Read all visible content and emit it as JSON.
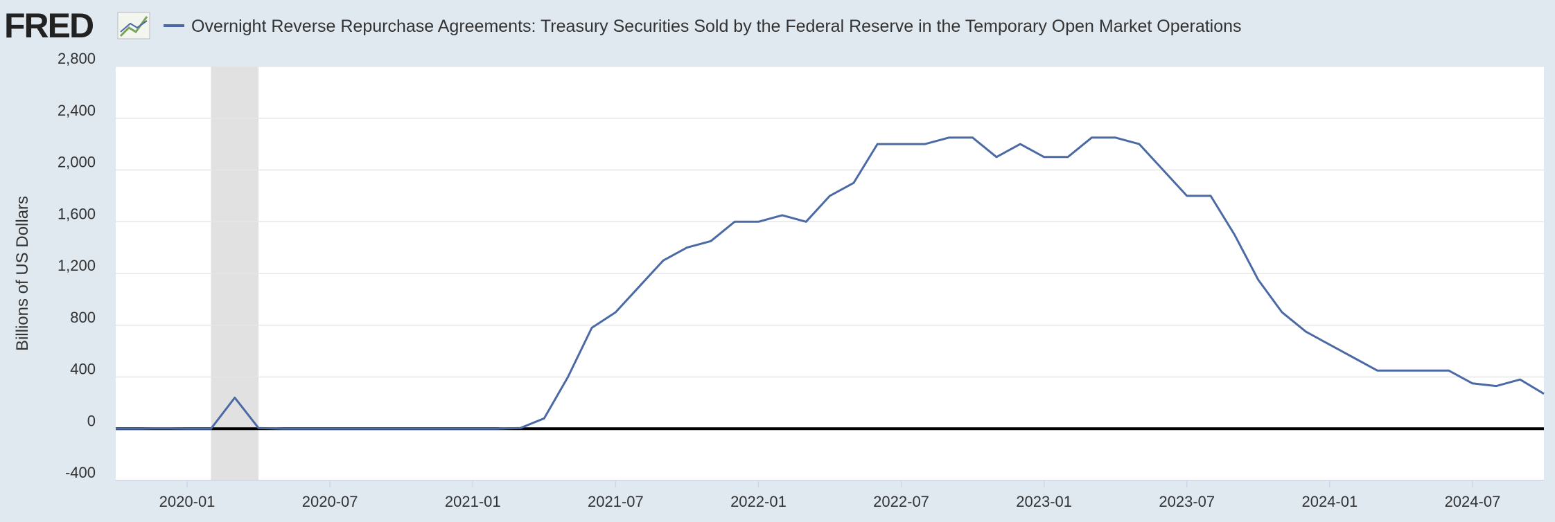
{
  "logo": "FRED",
  "chart_data": {
    "type": "line",
    "y_label": "Billions of US Dollars",
    "x": [
      "2019-10",
      "2019-11",
      "2019-12",
      "2020-01",
      "2020-02",
      "2020-03",
      "2020-04",
      "2020-05",
      "2020-06",
      "2020-07",
      "2020-08",
      "2020-09",
      "2020-10",
      "2020-11",
      "2020-12",
      "2021-01",
      "2021-02",
      "2021-03",
      "2021-04",
      "2021-05",
      "2021-06",
      "2021-07",
      "2021-08",
      "2021-09",
      "2021-10",
      "2021-11",
      "2021-12",
      "2022-01",
      "2022-02",
      "2022-03",
      "2022-04",
      "2022-05",
      "2022-06",
      "2022-07",
      "2022-08",
      "2022-09",
      "2022-10",
      "2022-11",
      "2022-12",
      "2023-01",
      "2023-02",
      "2023-03",
      "2023-04",
      "2023-05",
      "2023-06",
      "2023-07",
      "2023-08",
      "2023-09",
      "2023-10",
      "2023-11",
      "2023-12",
      "2024-01",
      "2024-02",
      "2024-03",
      "2024-04",
      "2024-05",
      "2024-06",
      "2024-07",
      "2024-08",
      "2024-09",
      "2024-10"
    ],
    "series": [
      {
        "name": "Overnight Reverse Repurchase Agreements: Treasury Securities Sold by the Federal Reserve in the Temporary Open Market Operations",
        "color": "#4b6aa5",
        "values": [
          0,
          0,
          2,
          0,
          0,
          240,
          5,
          0,
          0,
          0,
          0,
          0,
          0,
          0,
          0,
          0,
          0,
          5,
          80,
          400,
          780,
          900,
          1100,
          1300,
          1400,
          1450,
          1600,
          1600,
          1650,
          1600,
          1800,
          1900,
          2200,
          2200,
          2200,
          2250,
          2250,
          2100,
          2200,
          2100,
          2100,
          2250,
          2250,
          2200,
          2000,
          1800,
          1800,
          1500,
          1150,
          900,
          750,
          650,
          550,
          450,
          450,
          450,
          450,
          350,
          330,
          380,
          270
        ]
      }
    ],
    "xlim": [
      "2019-10",
      "2024-10"
    ],
    "xticks": [
      "2020-01",
      "2020-07",
      "2021-01",
      "2021-07",
      "2022-01",
      "2022-07",
      "2023-01",
      "2023-07",
      "2024-01",
      "2024-07"
    ],
    "ylim": [
      -400,
      2800
    ],
    "yticks": [
      -400,
      0,
      400,
      {
        "value": 800,
        "label": "800"
      },
      {
        "value": 1200,
        "label": "1,200"
      },
      {
        "value": 1600,
        "label": "1,600"
      },
      {
        "value": 2000,
        "label": "2,000"
      },
      {
        "value": 2400,
        "label": "2,400"
      },
      {
        "value": 2800,
        "label": "2,800"
      }
    ],
    "grid": true,
    "recession": [
      "2020-02",
      "2020-04"
    ],
    "zero_line": true
  }
}
